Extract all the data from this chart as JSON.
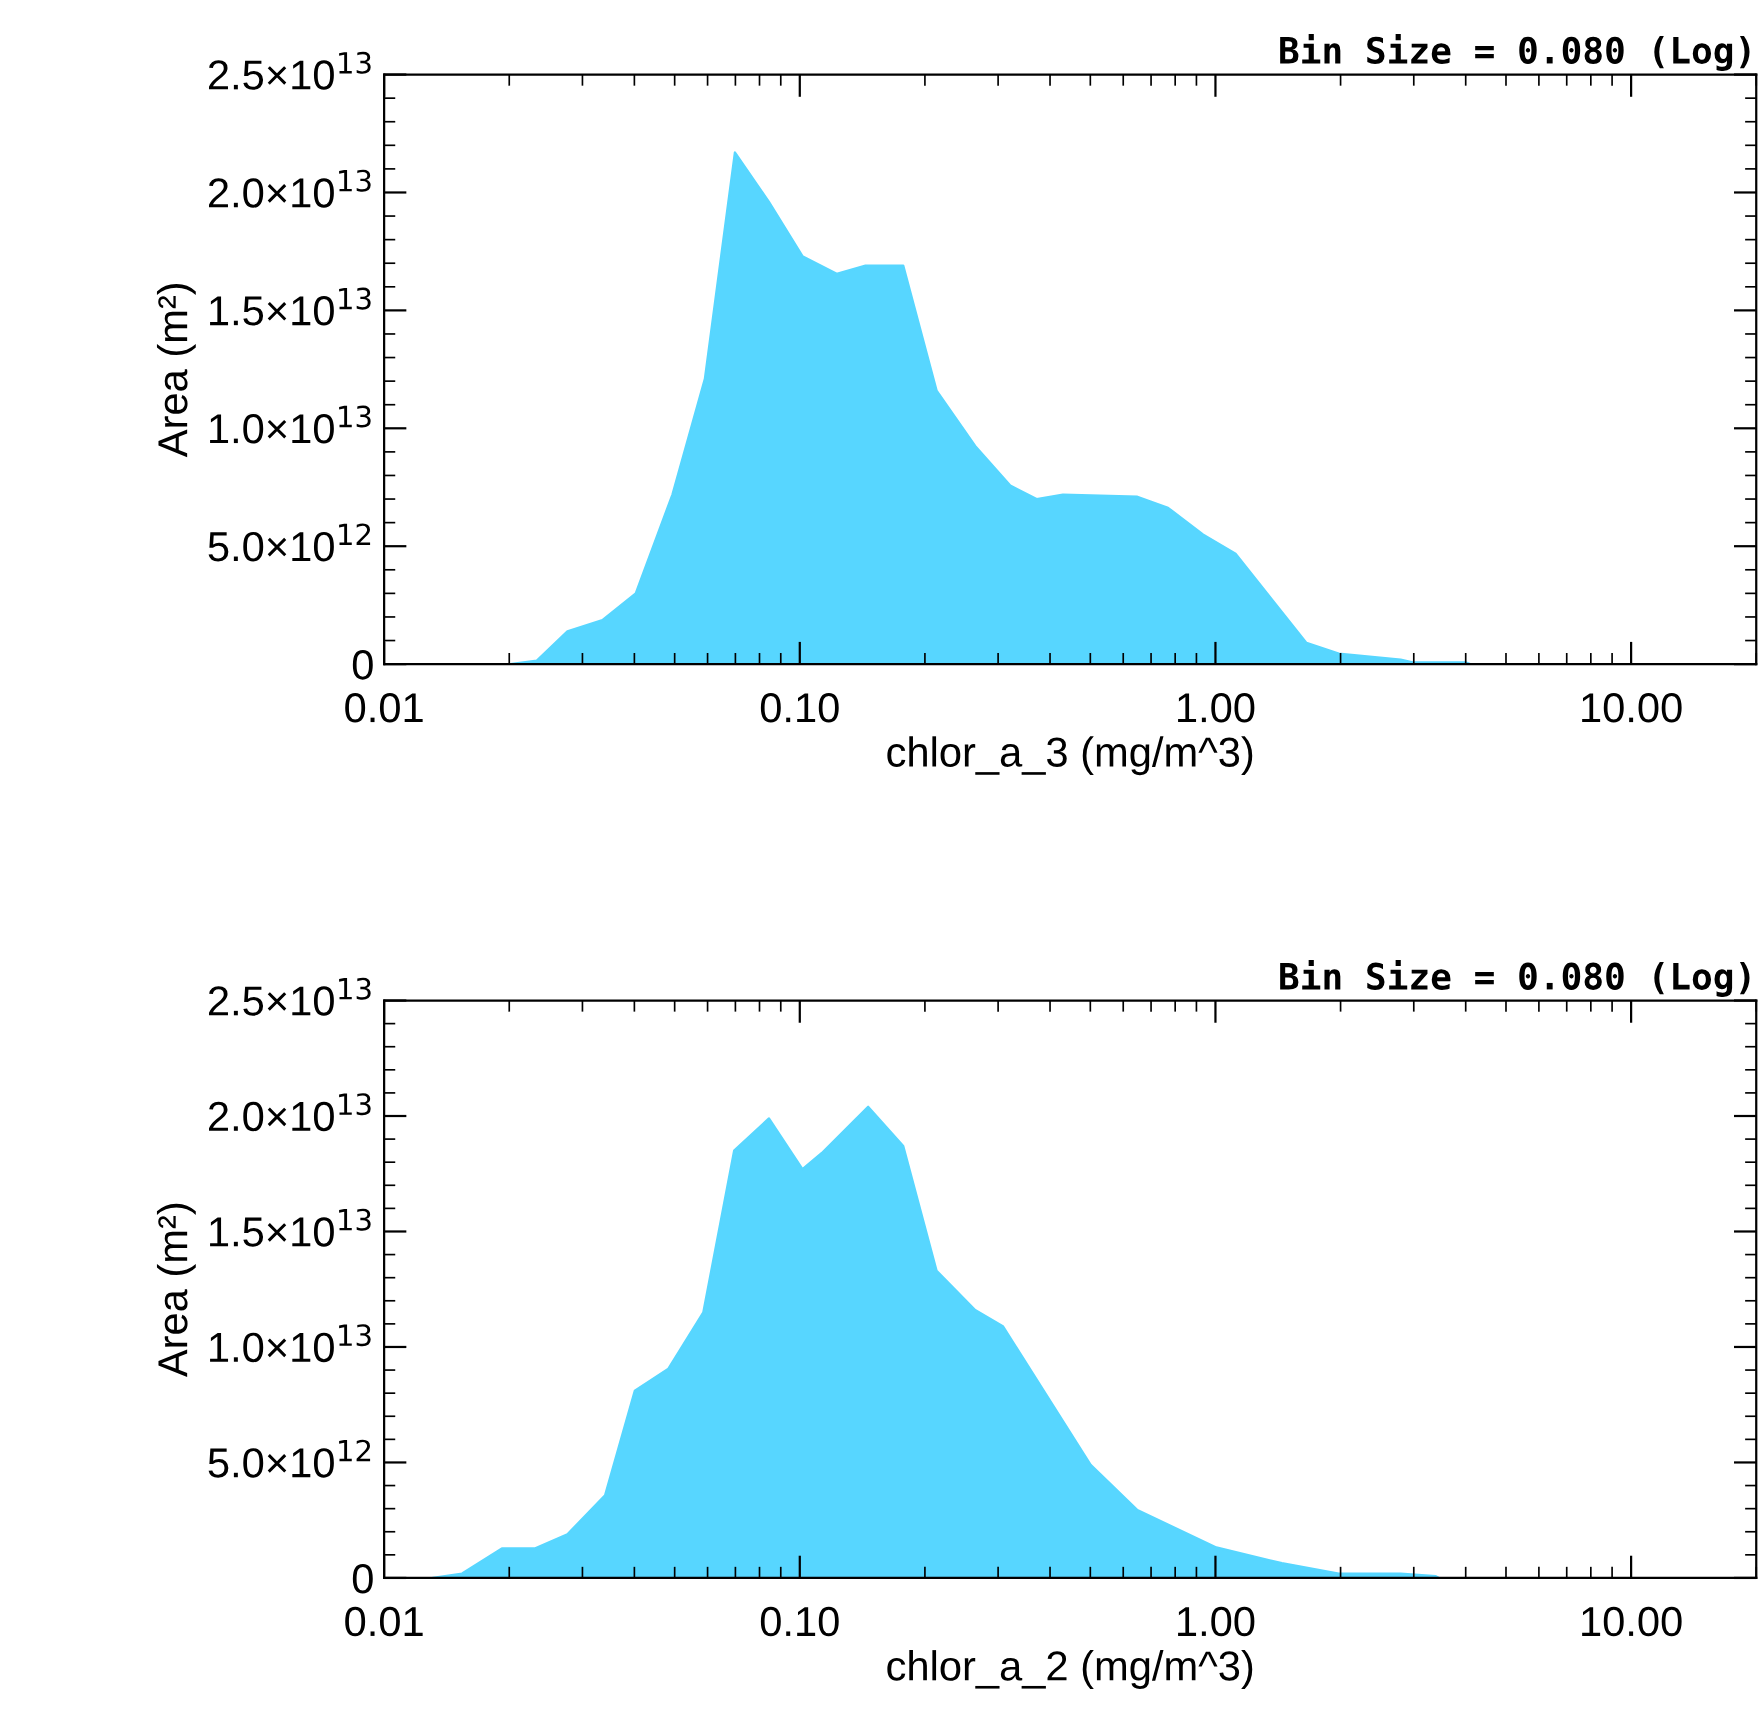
{
  "chart_data": [
    {
      "type": "area",
      "title": "Bin Size = 0.080 (Log)",
      "xlabel": "chlor_a_3 (mg/m^3)",
      "ylabel": "Area (m²)",
      "log": "x",
      "grid": false,
      "xlim": [
        0.01,
        20
      ],
      "xticks": [
        {
          "value": 0.01,
          "label": "0.01"
        },
        {
          "value": 0.1,
          "label": "0.10"
        },
        {
          "value": 1,
          "label": "1.00"
        },
        {
          "value": 10,
          "label": "10.00"
        }
      ],
      "ylim": [
        0,
        25000000000000.0
      ],
      "yticks": [
        0,
        {
          "value": 5000000000000.0,
          "label": "5.0×10$^{12}$"
        },
        {
          "value": 10000000000000.0,
          "label": "1.0×10$^{13}$"
        },
        {
          "value": 15000000000000.0,
          "label": "1.5×10$^{13}$"
        },
        {
          "value": 20000000000000.0,
          "label": "2.0×10$^{13}$"
        },
        {
          "value": 25000000000000.0,
          "label": "2.5×10$^{13}$"
        }
      ],
      "series": [
        {
          "color": "#57d6ff",
          "x": [
            0.0201,
            0.0233,
            0.0276,
            0.0335,
            0.0403,
            0.0494,
            0.0591,
            0.0698,
            0.0843,
            0.1015,
            0.1227,
            0.1439,
            0.1774,
            0.2134,
            0.2642,
            0.3209,
            0.3714,
            0.4296,
            0.649,
            0.769,
            0.933,
            1.118,
            1.656,
            1.98,
            2.79,
            3.0,
            4.01,
            4.1
          ],
          "values": [
            0,
            150000000000.0,
            1390000000000.0,
            1870000000000.0,
            3000000000000.0,
            7200000000000.0,
            12100000000000.0,
            21700000000000.0,
            19600000000000.0,
            17300000000000.0,
            16550000000000.0,
            16900000000000.0,
            16900000000000.0,
            11600000000000.0,
            9250000000000.0,
            7570000000000.0,
            7000000000000.0,
            7190000000000.0,
            7100000000000.0,
            6630000000000.0,
            5500000000000.0,
            4680000000000.0,
            900000000000.0,
            450000000000.0,
            190000000000.0,
            70000000000.0,
            70000000000.0,
            0
          ]
        }
      ]
    },
    {
      "type": "area",
      "title": "Bin Size = 0.080 (Log)",
      "xlabel": "chlor_a_2 (mg/m^3)",
      "ylabel": "Area (m²)",
      "log": "x",
      "grid": false,
      "xlim": [
        0.01,
        20
      ],
      "xticks": [
        {
          "value": 0.01,
          "label": "0.01"
        },
        {
          "value": 0.1,
          "label": "0.10"
        },
        {
          "value": 1,
          "label": "1.00"
        },
        {
          "value": 10,
          "label": "10.00"
        }
      ],
      "ylim": [
        0,
        25000000000000.0
      ],
      "yticks": [
        0,
        {
          "value": 5000000000000.0,
          "label": "5.0×10$^{12}$"
        },
        {
          "value": 10000000000000.0,
          "label": "1.0×10$^{13}$"
        },
        {
          "value": 15000000000000.0,
          "label": "1.5×10$^{13}$"
        },
        {
          "value": 20000000000000.0,
          "label": "2.0×10$^{13}$"
        },
        {
          "value": 25000000000000.0,
          "label": "2.5×10$^{13}$"
        }
      ],
      "series": [
        {
          "color": "#57d6ff",
          "x": [
            0.0131,
            0.0154,
            0.0192,
            0.0231,
            0.0276,
            0.034,
            0.0401,
            0.0483,
            0.0586,
            0.0695,
            0.0843,
            0.1015,
            0.113,
            0.146,
            0.1774,
            0.2134,
            0.2642,
            0.308,
            0.501,
            0.649,
            1.005,
            1.445,
            1.98,
            2.79,
            3.39,
            3.45
          ],
          "values": [
            0,
            190000000000.0,
            1280000000000.0,
            1280000000000.0,
            1890000000000.0,
            3580000000000.0,
            8110000000000.0,
            9060000000000.0,
            11500000000000.0,
            18500000000000.0,
            19900000000000.0,
            17700000000000.0,
            18400000000000.0,
            20400000000000.0,
            18700000000000.0,
            13300000000000.0,
            11600000000000.0,
            10900000000000.0,
            4900000000000.0,
            2940000000000.0,
            1320000000000.0,
            640000000000.0,
            190000000000.0,
            190000000000.0,
            80000000000.0,
            0
          ]
        }
      ]
    }
  ]
}
